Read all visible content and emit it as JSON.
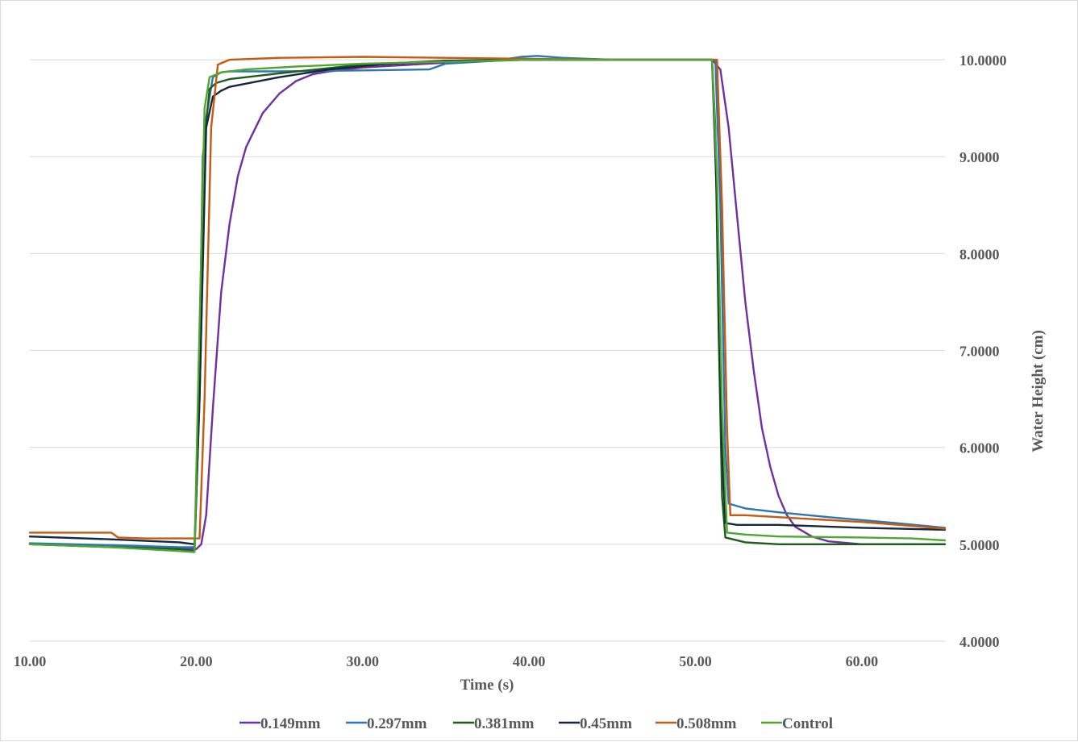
{
  "chart_data": {
    "type": "line",
    "title": "",
    "xlabel": "Time (s)",
    "ylabel": "Water Height (cm)",
    "xlim": [
      10,
      65
    ],
    "ylim": [
      4,
      10.5
    ],
    "x_ticks": [
      "10.00",
      "20.00",
      "30.00",
      "40.00",
      "50.00",
      "60.00"
    ],
    "x_tick_values": [
      10,
      20,
      30,
      40,
      50,
      60
    ],
    "y_ticks": [
      "4.0000",
      "5.0000",
      "6.0000",
      "7.0000",
      "8.0000",
      "9.0000",
      "10.0000"
    ],
    "y_tick_values": [
      4,
      5,
      6,
      7,
      8,
      9,
      10
    ],
    "y_axis_side": "right",
    "grid": true,
    "legend_position": "bottom",
    "series": [
      {
        "name": "0.149mm",
        "color": "#7030a0",
        "points": [
          [
            10,
            5.0
          ],
          [
            15,
            4.98
          ],
          [
            19,
            4.96
          ],
          [
            20,
            4.95
          ],
          [
            20.3,
            5.0
          ],
          [
            20.6,
            5.3
          ],
          [
            21,
            6.4
          ],
          [
            21.5,
            7.6
          ],
          [
            22,
            8.3
          ],
          [
            22.5,
            8.8
          ],
          [
            23,
            9.1
          ],
          [
            24,
            9.45
          ],
          [
            25,
            9.65
          ],
          [
            26,
            9.78
          ],
          [
            27,
            9.85
          ],
          [
            28,
            9.88
          ],
          [
            30,
            9.92
          ],
          [
            33,
            9.95
          ],
          [
            36,
            9.98
          ],
          [
            40,
            10.0
          ],
          [
            45,
            10.0
          ],
          [
            51,
            10.0
          ],
          [
            51.5,
            9.9
          ],
          [
            52,
            9.3
          ],
          [
            52.5,
            8.4
          ],
          [
            53,
            7.5
          ],
          [
            53.5,
            6.8
          ],
          [
            54,
            6.2
          ],
          [
            54.5,
            5.8
          ],
          [
            55,
            5.5
          ],
          [
            55.5,
            5.3
          ],
          [
            56,
            5.18
          ],
          [
            57,
            5.08
          ],
          [
            58,
            5.03
          ],
          [
            60,
            5.0
          ],
          [
            63,
            5.0
          ],
          [
            65,
            5.0
          ]
        ]
      },
      {
        "name": "0.297mm",
        "color": "#2e75b6",
        "points": [
          [
            10,
            5.01
          ],
          [
            15,
            4.99
          ],
          [
            19,
            4.97
          ],
          [
            19.9,
            4.97
          ],
          [
            20.2,
            6.5
          ],
          [
            20.6,
            9.4
          ],
          [
            21,
            9.82
          ],
          [
            21.5,
            9.87
          ],
          [
            22,
            9.88
          ],
          [
            25,
            9.88
          ],
          [
            30,
            9.89
          ],
          [
            34,
            9.9
          ],
          [
            35,
            9.96
          ],
          [
            38,
            9.99
          ],
          [
            39.5,
            10.03
          ],
          [
            40.5,
            10.04
          ],
          [
            42,
            10.02
          ],
          [
            45,
            10.0
          ],
          [
            50,
            10.0
          ],
          [
            51.2,
            10.0
          ],
          [
            51.5,
            8.5
          ],
          [
            51.8,
            6.0
          ],
          [
            52,
            5.42
          ],
          [
            53,
            5.37
          ],
          [
            55,
            5.33
          ],
          [
            58,
            5.28
          ],
          [
            62,
            5.22
          ],
          [
            65,
            5.17
          ]
        ]
      },
      {
        "name": "0.381mm",
        "color": "#1e5c1e",
        "points": [
          [
            10,
            5.0
          ],
          [
            15,
            4.97
          ],
          [
            19,
            4.95
          ],
          [
            19.9,
            4.93
          ],
          [
            20.1,
            6.0
          ],
          [
            20.4,
            9.0
          ],
          [
            20.8,
            9.7
          ],
          [
            21.2,
            9.76
          ],
          [
            22,
            9.8
          ],
          [
            25,
            9.86
          ],
          [
            30,
            9.95
          ],
          [
            35,
            9.99
          ],
          [
            40,
            10.0
          ],
          [
            45,
            10.0
          ],
          [
            51,
            10.0
          ],
          [
            51.2,
            9.3
          ],
          [
            51.4,
            7.2
          ],
          [
            51.6,
            5.5
          ],
          [
            51.8,
            5.07
          ],
          [
            53,
            5.02
          ],
          [
            55,
            5.0
          ],
          [
            60,
            5.0
          ],
          [
            65,
            5.0
          ]
        ]
      },
      {
        "name": "0.45mm",
        "color": "#17273d",
        "points": [
          [
            10,
            5.08
          ],
          [
            15,
            5.05
          ],
          [
            19,
            5.02
          ],
          [
            19.9,
            5.0
          ],
          [
            20.2,
            6.5
          ],
          [
            20.6,
            9.3
          ],
          [
            21,
            9.62
          ],
          [
            21.5,
            9.68
          ],
          [
            22,
            9.72
          ],
          [
            25,
            9.82
          ],
          [
            28,
            9.9
          ],
          [
            31,
            9.95
          ],
          [
            35,
            9.99
          ],
          [
            40,
            10.0
          ],
          [
            45,
            10.0
          ],
          [
            51,
            10.0
          ],
          [
            51.3,
            8.5
          ],
          [
            51.6,
            6.0
          ],
          [
            51.8,
            5.22
          ],
          [
            52.5,
            5.2
          ],
          [
            55,
            5.2
          ],
          [
            60,
            5.17
          ],
          [
            65,
            5.15
          ]
        ]
      },
      {
        "name": "0.508mm",
        "color": "#c55a11",
        "points": [
          [
            10,
            5.12
          ],
          [
            14.9,
            5.12
          ],
          [
            15.3,
            5.07
          ],
          [
            17,
            5.06
          ],
          [
            19,
            5.06
          ],
          [
            20.2,
            5.06
          ],
          [
            20.5,
            6.5
          ],
          [
            20.9,
            9.3
          ],
          [
            21.3,
            9.95
          ],
          [
            22,
            10.0
          ],
          [
            25,
            10.02
          ],
          [
            30,
            10.03
          ],
          [
            35,
            10.02
          ],
          [
            40,
            10.01
          ],
          [
            45,
            10.0
          ],
          [
            50,
            10.0
          ],
          [
            51.3,
            10.0
          ],
          [
            51.6,
            8.5
          ],
          [
            51.9,
            6.2
          ],
          [
            52.1,
            5.3
          ],
          [
            53,
            5.3
          ],
          [
            56,
            5.27
          ],
          [
            60,
            5.23
          ],
          [
            63,
            5.19
          ],
          [
            65,
            5.16
          ]
        ]
      },
      {
        "name": "Control",
        "color": "#4ea72e",
        "points": [
          [
            10,
            5.0
          ],
          [
            15,
            4.97
          ],
          [
            19,
            4.93
          ],
          [
            19.9,
            4.92
          ],
          [
            20.1,
            6.5
          ],
          [
            20.5,
            9.5
          ],
          [
            20.8,
            9.82
          ],
          [
            21.5,
            9.87
          ],
          [
            23,
            9.9
          ],
          [
            26,
            9.93
          ],
          [
            30,
            9.96
          ],
          [
            35,
            9.98
          ],
          [
            40,
            10.0
          ],
          [
            45,
            10.0
          ],
          [
            51,
            10.0
          ],
          [
            51.3,
            8.8
          ],
          [
            51.6,
            6.4
          ],
          [
            51.9,
            5.12
          ],
          [
            53,
            5.1
          ],
          [
            55,
            5.08
          ],
          [
            60,
            5.07
          ],
          [
            63,
            5.06
          ],
          [
            65,
            5.04
          ]
        ]
      }
    ]
  }
}
